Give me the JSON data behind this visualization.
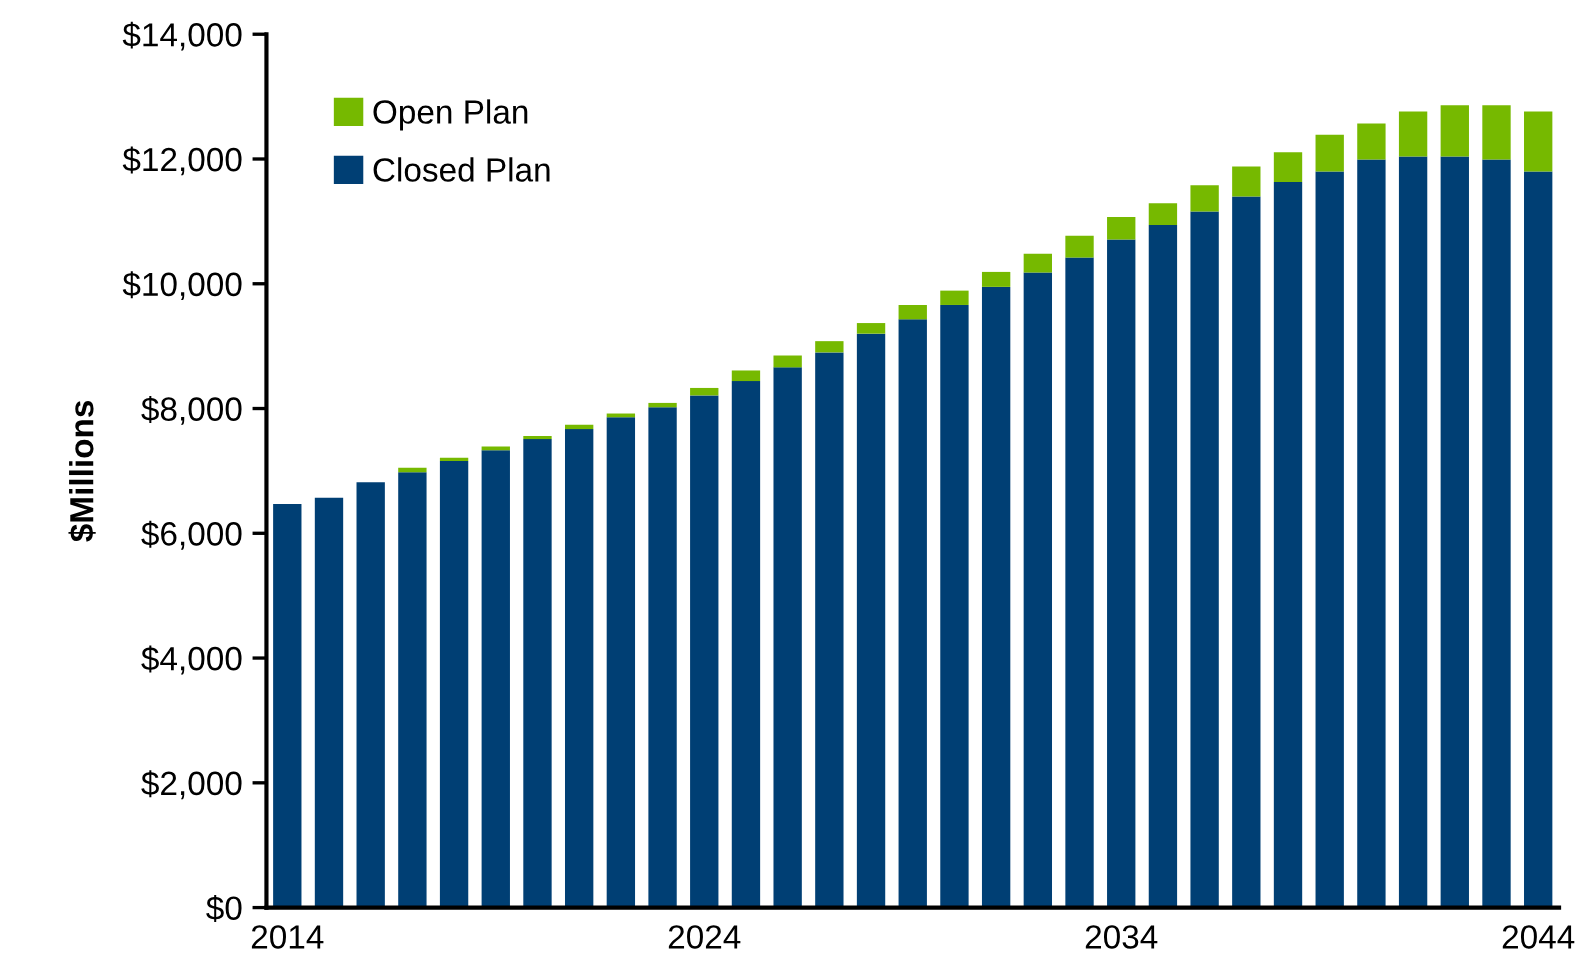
{
  "chart_data": {
    "type": "bar",
    "stacked": true,
    "ylabel": "$Millions",
    "categories": [
      "2014",
      null,
      null,
      null,
      null,
      null,
      null,
      null,
      null,
      null,
      "2024",
      null,
      null,
      null,
      null,
      null,
      null,
      null,
      null,
      null,
      "2034",
      null,
      null,
      null,
      null,
      null,
      null,
      null,
      null,
      null,
      "2044"
    ],
    "series": [
      {
        "name": "Closed Plan",
        "color": "#003f74",
        "values": [
          6470,
          6570,
          6820,
          6980,
          7160,
          7330,
          7510,
          7670,
          7860,
          8020,
          8210,
          8440,
          8660,
          8900,
          9200,
          9430,
          9660,
          9950,
          10180,
          10420,
          10710,
          10940,
          11160,
          11400,
          11630,
          11800,
          11990,
          12040,
          12040,
          11990,
          11800
        ]
      },
      {
        "name": "Open Plan",
        "color": "#76b900",
        "values": [
          0,
          0,
          0,
          70,
          50,
          60,
          50,
          70,
          60,
          70,
          120,
          170,
          190,
          180,
          170,
          230,
          230,
          240,
          300,
          350,
          360,
          350,
          420,
          480,
          480,
          590,
          580,
          720,
          820,
          870,
          960
        ]
      }
    ],
    "ylim": [
      0,
      14000
    ],
    "yticks": [
      {
        "value": 0,
        "label": "$0"
      },
      {
        "value": 2000,
        "label": "$2,000"
      },
      {
        "value": 4000,
        "label": "$4,000"
      },
      {
        "value": 6000,
        "label": "$6,000"
      },
      {
        "value": 8000,
        "label": "$8,000"
      },
      {
        "value": 10000,
        "label": "$10,000"
      },
      {
        "value": 12000,
        "label": "$12,000"
      },
      {
        "value": 14000,
        "label": "$14,000"
      }
    ],
    "legend": "top left",
    "grid": false
  }
}
